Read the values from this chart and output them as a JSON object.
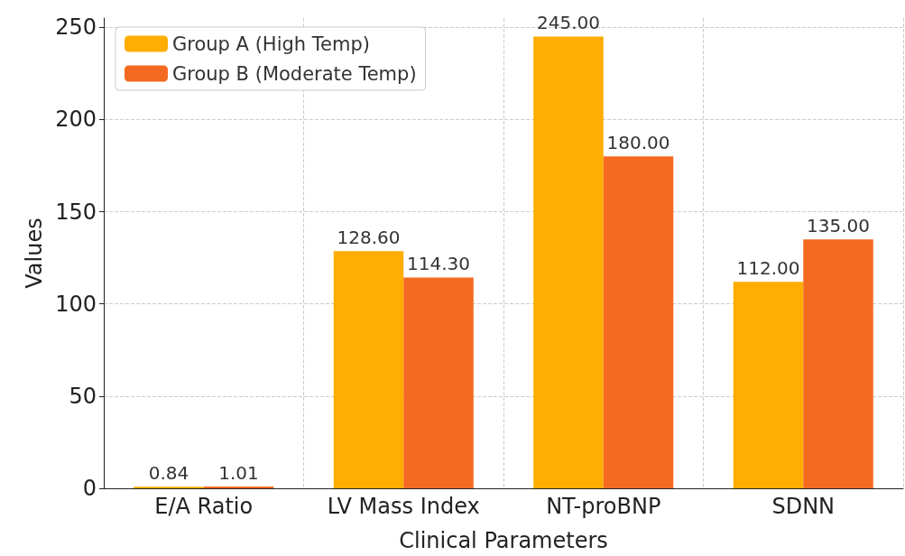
{
  "chart_data": {
    "type": "bar",
    "xlabel": "Clinical Parameters",
    "ylabel": "Values",
    "categories": [
      "E/A Ratio",
      "LV Mass Index",
      "NT-proBNP",
      "SDNN"
    ],
    "series": [
      {
        "name": "Group A (High Temp)",
        "color": "#ffad00",
        "values": [
          0.84,
          128.6,
          245,
          112
        ],
        "value_labels": [
          "0.84",
          "128.60",
          "245.00",
          "112.00"
        ]
      },
      {
        "name": "Group B (Moderate Temp)",
        "color": "#f46a21",
        "values": [
          1.01,
          114.3,
          180,
          135
        ],
        "value_labels": [
          "1.01",
          "114.30",
          "180.00",
          "135.00"
        ]
      }
    ],
    "ylim": [
      0,
      255
    ],
    "yticks": [
      0,
      50,
      100,
      150,
      200,
      250
    ],
    "grid": true,
    "legend": "top left"
  }
}
